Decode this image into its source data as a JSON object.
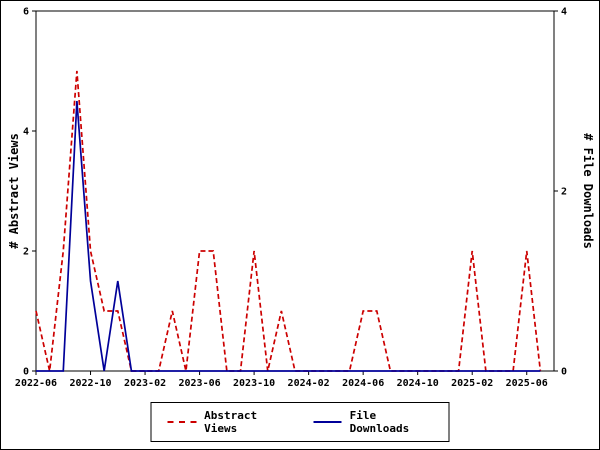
{
  "page": {
    "background": "#ffffff",
    "frame_color": "#000000"
  },
  "chart_data": {
    "type": "line",
    "title": "",
    "grid": false,
    "x": [
      "2022-06",
      "2022-07",
      "2022-08",
      "2022-09",
      "2022-10",
      "2022-11",
      "2022-12",
      "2023-01",
      "2023-02",
      "2023-03",
      "2023-04",
      "2023-05",
      "2023-06",
      "2023-07",
      "2023-08",
      "2023-09",
      "2023-10",
      "2023-11",
      "2023-12",
      "2024-01",
      "2024-02",
      "2024-03",
      "2024-04",
      "2024-05",
      "2024-06",
      "2024-07",
      "2024-08",
      "2024-09",
      "2024-10",
      "2024-11",
      "2024-12",
      "2025-01",
      "2025-02",
      "2025-03",
      "2025-04",
      "2025-05",
      "2025-06",
      "2025-07"
    ],
    "x_tick_every": 4,
    "x_tick_labels": [
      "2022-06",
      "2022-10",
      "2023-02",
      "2023-06",
      "2023-10",
      "2024-02",
      "2024-06",
      "2024-10",
      "2025-02",
      "2025-06"
    ],
    "left_axis": {
      "label": "# Abstract Views",
      "min": 0,
      "max": 6,
      "ticks": [
        0,
        2,
        4,
        6
      ]
    },
    "right_axis": {
      "label": "# File Downloads",
      "min": 0,
      "max": 4,
      "ticks": [
        0,
        2,
        4
      ]
    },
    "series": [
      {
        "name": "Abstract Views",
        "axis": "left",
        "color": "#cc0000",
        "style": "dashed",
        "values": [
          1,
          0,
          2,
          5,
          2,
          1,
          1,
          0,
          0,
          0,
          1,
          0,
          2,
          2,
          0,
          0,
          2,
          0,
          1,
          0,
          0,
          0,
          0,
          0,
          1,
          1,
          0,
          0,
          0,
          0,
          0,
          0,
          2,
          0,
          0,
          0,
          2,
          0
        ]
      },
      {
        "name": "File Downloads",
        "axis": "right",
        "color": "#000099",
        "style": "solid",
        "values": [
          0,
          0,
          0,
          3,
          1,
          0,
          1,
          0,
          0,
          0,
          0,
          0,
          0,
          0,
          0,
          0,
          0,
          0,
          0,
          0,
          0,
          0,
          0,
          0,
          0,
          0,
          0,
          0,
          0,
          0,
          0,
          0,
          0,
          0,
          0,
          0,
          0,
          0
        ]
      }
    ],
    "legend": {
      "position": "bottom",
      "items": [
        "Abstract Views",
        "File Downloads"
      ]
    }
  }
}
